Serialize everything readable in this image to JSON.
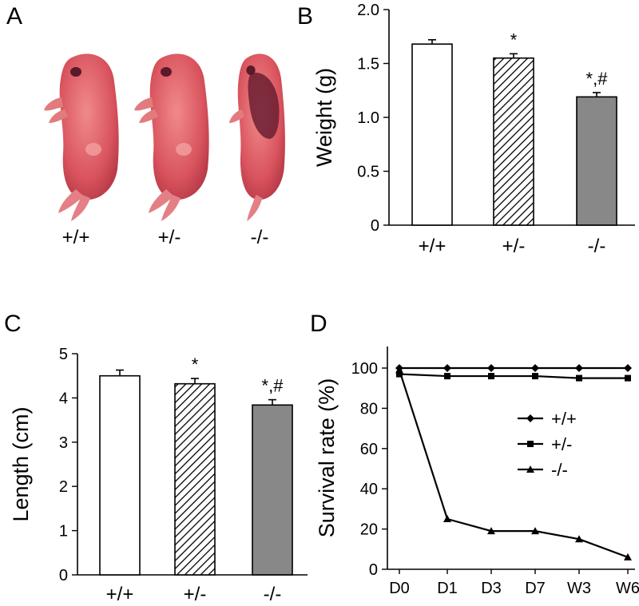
{
  "panels": {
    "A": {
      "letter": "A",
      "genotypes": [
        "+/+",
        "+/-",
        "-/-"
      ]
    },
    "B": {
      "letter": "B"
    },
    "C": {
      "letter": "C"
    },
    "D": {
      "letter": "D"
    }
  },
  "colors": {
    "wildtype_bar": "#ffffff",
    "hetero_bar": "hatched",
    "knockout_bar": "#888888",
    "pup_skin": "#d0606a",
    "pup_dark": "#5a1a2a"
  },
  "chart_data": [
    {
      "id": "B",
      "type": "bar",
      "categories": [
        "+/+",
        "+/-",
        "-/-"
      ],
      "values": [
        1.68,
        1.55,
        1.19
      ],
      "errors": [
        0.04,
        0.04,
        0.04
      ],
      "significance": [
        "",
        "*",
        "*,#"
      ],
      "fills": [
        "white",
        "hatched",
        "gray"
      ],
      "ylabel": "Weight (g)",
      "ylim": [
        0,
        2.0
      ],
      "yticks": [
        "0",
        "0.5",
        "1.0",
        "1.5",
        "2.0"
      ],
      "ytick_values": [
        0,
        0.5,
        1.0,
        1.5,
        2.0
      ]
    },
    {
      "id": "C",
      "type": "bar",
      "categories": [
        "+/+",
        "+/-",
        "-/-"
      ],
      "values": [
        4.5,
        4.32,
        3.84
      ],
      "errors": [
        0.13,
        0.12,
        0.12
      ],
      "significance": [
        "",
        "*",
        "*,#"
      ],
      "fills": [
        "white",
        "hatched",
        "gray"
      ],
      "ylabel": "Length (cm)",
      "ylim": [
        0,
        5
      ],
      "yticks": [
        "0",
        "1",
        "2",
        "3",
        "4",
        "5"
      ],
      "ytick_values": [
        0,
        1,
        2,
        3,
        4,
        5
      ]
    },
    {
      "id": "D",
      "type": "line",
      "x": [
        "D0",
        "D1",
        "D3",
        "D7",
        "W3",
        "W6"
      ],
      "series": [
        {
          "name": "+/+",
          "values": [
            100,
            100,
            100,
            100,
            100,
            100
          ],
          "marker": "diamond"
        },
        {
          "name": "+/-",
          "values": [
            97,
            96,
            96,
            96,
            95,
            95
          ],
          "marker": "square"
        },
        {
          "name": "-/-",
          "values": [
            99,
            25,
            19,
            19,
            15,
            6
          ],
          "marker": "triangle"
        }
      ],
      "ylabel": "Survival rate (%)",
      "ylim": [
        0,
        100
      ],
      "yticks": [
        "0",
        "20",
        "40",
        "60",
        "80",
        "100"
      ],
      "ytick_values": [
        0,
        20,
        40,
        60,
        80,
        100
      ],
      "legend_position": "right-middle"
    }
  ]
}
